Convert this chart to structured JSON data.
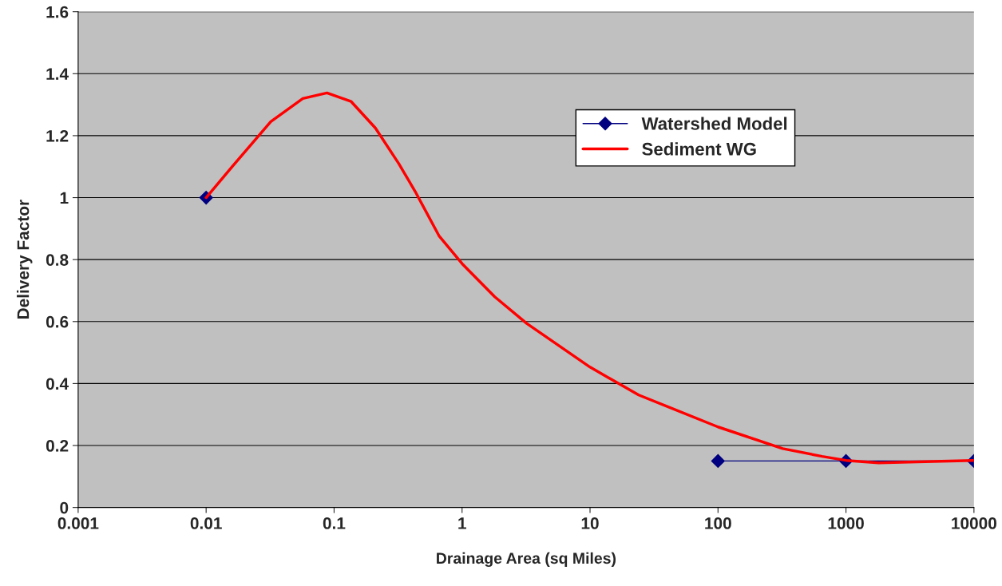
{
  "chart_data": {
    "type": "line",
    "xlabel": "Drainage Area (sq Miles)",
    "ylabel": "Delivery Factor",
    "log": "x",
    "xlim": [
      0.001,
      10000
    ],
    "xticks": [
      0.001,
      0.01,
      0.1,
      1,
      10,
      100,
      1000,
      10000
    ],
    "ylim": [
      0,
      1.6
    ],
    "yticks": [
      0,
      0.2,
      0.4,
      0.6,
      0.8,
      1,
      1.2,
      1.4,
      1.6
    ],
    "grid": "y",
    "legend": "top right",
    "line_style": "solid",
    "series": [
      {
        "name": "Watershed Model",
        "color": "#000080",
        "marker": "diamond",
        "x": [
          0.01,
          1,
          100,
          1000,
          10000
        ],
        "values": [
          1,
          null,
          0.15,
          0.15,
          0.15
        ]
      },
      {
        "name": "Sediment WG",
        "color": "#ff0000",
        "marker": "none",
        "x": [
          0.01,
          0.016,
          0.032,
          0.057,
          0.088,
          0.136,
          0.21,
          0.32,
          0.43,
          0.66,
          1,
          1.8,
          3.2,
          10,
          24,
          100,
          320,
          650,
          1000,
          1800,
          3600,
          10000
        ],
        "values": [
          1.0,
          1.1,
          1.245,
          1.32,
          1.338,
          1.31,
          1.225,
          1.11,
          1.02,
          0.877,
          0.787,
          0.68,
          0.594,
          0.453,
          0.363,
          0.26,
          0.19,
          0.165,
          0.152,
          0.144,
          0.147,
          0.152
        ]
      }
    ]
  }
}
